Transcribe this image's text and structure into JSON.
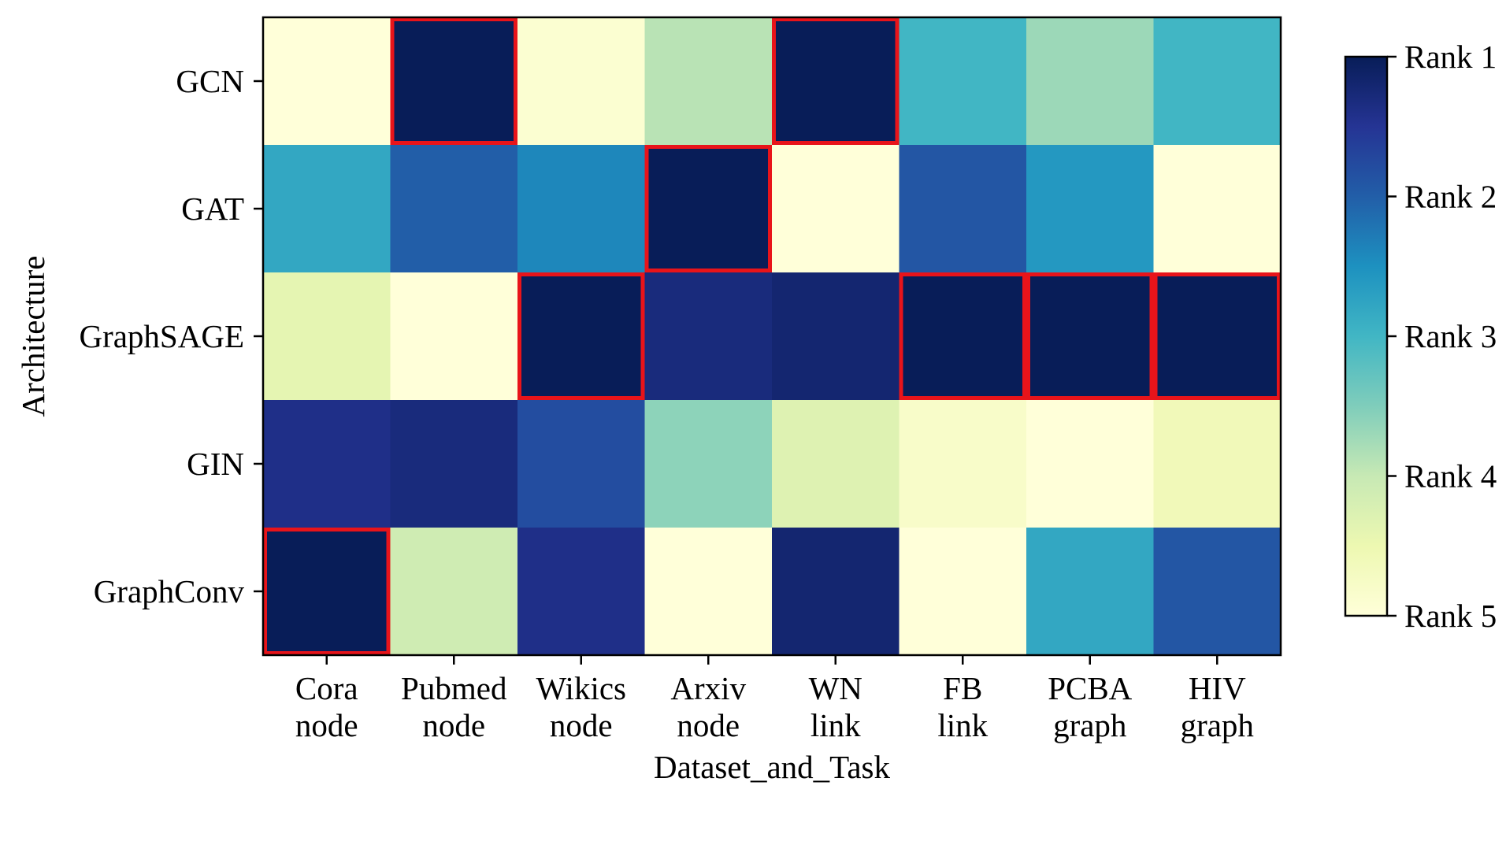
{
  "chart_data": {
    "type": "heatmap",
    "title": "",
    "xlabel": "Dataset_and_Task",
    "ylabel": "Architecture",
    "x_categories": [
      [
        "Cora",
        "node"
      ],
      [
        "Pubmed",
        "node"
      ],
      [
        "Wikics",
        "node"
      ],
      [
        "Arxiv",
        "node"
      ],
      [
        "WN",
        "link"
      ],
      [
        "FB",
        "link"
      ],
      [
        "PCBA",
        "graph"
      ],
      [
        "HIV",
        "graph"
      ]
    ],
    "y_categories": [
      "GCN",
      "GAT",
      "GraphSAGE",
      "GIN",
      "GraphConv"
    ],
    "values": [
      [
        5.0,
        1.0,
        4.9,
        3.9,
        1.0,
        3.0,
        3.7,
        3.0
      ],
      [
        2.8,
        2.0,
        2.4,
        1.0,
        5.0,
        1.9,
        2.6,
        5.0
      ],
      [
        4.4,
        5.0,
        1.0,
        1.3,
        1.2,
        1.0,
        1.0,
        1.0
      ],
      [
        1.4,
        1.3,
        1.8,
        3.6,
        4.3,
        4.8,
        5.0,
        4.6
      ],
      [
        1.0,
        4.1,
        1.4,
        5.0,
        1.2,
        5.0,
        2.8,
        1.9
      ]
    ],
    "highlighted_cells": [
      [
        0,
        1
      ],
      [
        0,
        4
      ],
      [
        1,
        3
      ],
      [
        2,
        2
      ],
      [
        2,
        5
      ],
      [
        2,
        6
      ],
      [
        2,
        7
      ],
      [
        4,
        0
      ]
    ],
    "highlight_color": "#e8141a",
    "colormap": "YlGnBu",
    "colorbar": {
      "range": [
        1,
        5
      ],
      "ticks": [
        1,
        2,
        3,
        4,
        5
      ],
      "tick_labels": [
        "Rank 1",
        "Rank 2",
        "Rank 3",
        "Rank 4",
        "Rank 5"
      ],
      "placement": "right"
    }
  }
}
